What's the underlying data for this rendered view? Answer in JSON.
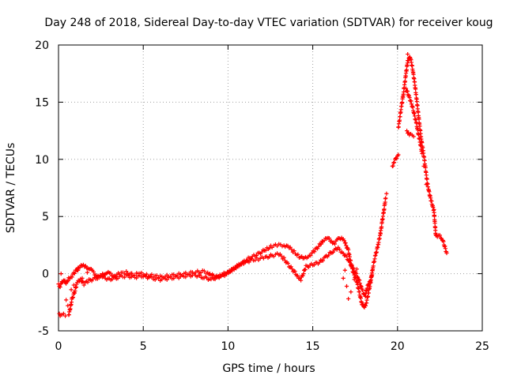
{
  "chart_data": {
    "type": "scatter",
    "title": "Day 248 of 2018, Sidereal Day-to-day VTEC variation (SDTVAR) for receiver koug",
    "xlabel": "GPS time / hours",
    "ylabel": "SDTVAR / TECUs",
    "xlim": [
      0,
      25
    ],
    "ylim": [
      -5,
      20
    ],
    "xticks": [
      "0",
      "5",
      "10",
      "15",
      "20",
      "25"
    ],
    "yticks": [
      "-5",
      "0",
      "5",
      "10",
      "15",
      "20"
    ],
    "grid": true,
    "marker": "plus",
    "marker_color": "#ff0000",
    "series": [
      {
        "name": "SDTVAR",
        "trace_main": [
          [
            0.0,
            -0.9
          ],
          [
            0.1,
            -1.1
          ],
          [
            0.2,
            -0.8
          ],
          [
            0.3,
            -0.5
          ],
          [
            0.45,
            -0.9
          ],
          [
            0.6,
            -0.4
          ],
          [
            0.8,
            -0.2
          ],
          [
            1.0,
            0.2
          ],
          [
            1.2,
            0.6
          ],
          [
            1.4,
            0.7
          ],
          [
            1.6,
            0.6
          ],
          [
            1.8,
            0.5
          ],
          [
            2.0,
            0.2
          ],
          [
            2.2,
            -0.1
          ],
          [
            2.4,
            -0.3
          ],
          [
            2.6,
            -0.1
          ],
          [
            2.8,
            0.1
          ],
          [
            3.0,
            0.0
          ],
          [
            3.3,
            -0.2
          ],
          [
            3.6,
            0.0
          ],
          [
            4.0,
            0.1
          ],
          [
            4.4,
            -0.1
          ],
          [
            4.8,
            0.0
          ],
          [
            5.2,
            -0.1
          ],
          [
            5.6,
            -0.2
          ],
          [
            6.0,
            -0.3
          ],
          [
            6.5,
            -0.2
          ],
          [
            7.0,
            -0.1
          ],
          [
            7.5,
            0.0
          ],
          [
            8.0,
            0.1
          ],
          [
            8.5,
            0.2
          ],
          [
            8.8,
            0.1
          ],
          [
            9.0,
            -0.1
          ],
          [
            9.3,
            -0.3
          ],
          [
            9.6,
            -0.1
          ],
          [
            10.0,
            0.1
          ],
          [
            10.4,
            0.5
          ],
          [
            10.8,
            0.9
          ],
          [
            11.2,
            1.3
          ],
          [
            11.6,
            1.6
          ],
          [
            12.0,
            1.9
          ],
          [
            12.3,
            2.2
          ],
          [
            12.6,
            2.4
          ],
          [
            13.0,
            2.5
          ],
          [
            13.3,
            2.5
          ],
          [
            13.6,
            2.3
          ],
          [
            13.9,
            1.9
          ],
          [
            14.2,
            1.5
          ],
          [
            14.5,
            1.3
          ],
          [
            14.8,
            1.6
          ],
          [
            15.1,
            2.0
          ],
          [
            15.4,
            2.5
          ],
          [
            15.6,
            2.9
          ],
          [
            15.9,
            3.1
          ],
          [
            16.1,
            2.8
          ],
          [
            16.3,
            2.7
          ],
          [
            16.5,
            3.0
          ],
          [
            16.7,
            3.2
          ],
          [
            16.9,
            2.7
          ],
          [
            17.1,
            2.0
          ],
          [
            17.2,
            1.3
          ],
          [
            17.3,
            0.5
          ],
          [
            17.45,
            -0.1
          ],
          [
            17.6,
            -0.7
          ],
          [
            17.75,
            -1.7
          ],
          [
            17.9,
            -2.6
          ],
          [
            18.05,
            -3.0
          ],
          [
            18.15,
            -2.6
          ],
          [
            18.3,
            -1.6
          ],
          [
            18.45,
            -0.4
          ],
          [
            18.55,
            0.6
          ],
          [
            18.7,
            1.6
          ],
          [
            18.85,
            2.5
          ],
          [
            19.0,
            3.6
          ],
          [
            19.1,
            4.6
          ],
          [
            19.2,
            5.6
          ],
          [
            19.3,
            6.6
          ]
        ],
        "trace_upper": [
          [
            19.7,
            9.4
          ],
          [
            19.8,
            9.8
          ],
          [
            20.0,
            10.3
          ],
          [
            20.05,
            12.8
          ],
          [
            20.15,
            13.8
          ],
          [
            20.25,
            14.8
          ],
          [
            20.35,
            15.8
          ],
          [
            20.5,
            17.5
          ],
          [
            20.6,
            18.6
          ],
          [
            20.7,
            19.0
          ],
          [
            20.8,
            18.6
          ],
          [
            20.9,
            17.8
          ],
          [
            21.0,
            16.8
          ],
          [
            21.1,
            15.6
          ],
          [
            21.2,
            14.3
          ],
          [
            21.3,
            13.0
          ],
          [
            21.4,
            11.8
          ],
          [
            21.5,
            10.8
          ],
          [
            21.6,
            9.8
          ],
          [
            21.75,
            8.0
          ],
          [
            21.85,
            7.2
          ],
          [
            21.95,
            6.6
          ],
          [
            22.05,
            6.0
          ],
          [
            22.15,
            5.5
          ],
          [
            22.25,
            3.5
          ],
          [
            22.35,
            3.2
          ],
          [
            22.5,
            3.3
          ],
          [
            22.65,
            3.0
          ],
          [
            22.8,
            2.3
          ],
          [
            22.9,
            1.8
          ]
        ],
        "trace_branch": [
          [
            20.5,
            16.2
          ],
          [
            20.65,
            15.6
          ],
          [
            20.8,
            15.0
          ],
          [
            20.95,
            14.2
          ],
          [
            21.1,
            13.2
          ],
          [
            21.25,
            12.1
          ],
          [
            21.45,
            10.5
          ],
          [
            20.55,
            12.5
          ],
          [
            20.7,
            12.2
          ],
          [
            20.95,
            12.0
          ]
        ],
        "trace_lower": [
          [
            0.6,
            -3.6
          ],
          [
            0.7,
            -3.0
          ],
          [
            0.8,
            -2.2
          ],
          [
            0.95,
            -1.6
          ],
          [
            1.1,
            -0.8
          ],
          [
            1.3,
            -0.5
          ],
          [
            1.5,
            -0.9
          ],
          [
            1.8,
            -0.6
          ],
          [
            2.2,
            -0.4
          ],
          [
            2.6,
            -0.3
          ],
          [
            3.0,
            -0.5
          ],
          [
            3.5,
            -0.3
          ],
          [
            4.0,
            -0.2
          ],
          [
            4.5,
            -0.3
          ],
          [
            5.0,
            -0.2
          ],
          [
            5.5,
            -0.4
          ],
          [
            6.0,
            -0.5
          ],
          [
            6.5,
            -0.4
          ],
          [
            7.0,
            -0.3
          ],
          [
            7.5,
            -0.2
          ],
          [
            8.0,
            -0.1
          ],
          [
            8.5,
            -0.3
          ],
          [
            9.0,
            -0.5
          ],
          [
            9.4,
            -0.3
          ],
          [
            9.8,
            -0.1
          ],
          [
            10.2,
            0.3
          ],
          [
            10.6,
            0.7
          ],
          [
            11.0,
            1.0
          ],
          [
            11.4,
            1.2
          ],
          [
            11.8,
            1.3
          ],
          [
            12.2,
            1.4
          ],
          [
            12.6,
            1.6
          ],
          [
            13.0,
            1.7
          ],
          [
            13.3,
            1.3
          ],
          [
            13.6,
            0.7
          ],
          [
            13.9,
            0.2
          ],
          [
            14.1,
            -0.2
          ],
          [
            14.3,
            -0.5
          ],
          [
            14.6,
            0.6
          ],
          [
            15.0,
            0.8
          ],
          [
            15.4,
            1.0
          ],
          [
            15.8,
            1.5
          ],
          [
            16.2,
            2.0
          ],
          [
            16.5,
            2.2
          ],
          [
            16.8,
            1.8
          ],
          [
            17.1,
            1.2
          ],
          [
            17.4,
            0.4
          ],
          [
            17.7,
            -0.4
          ],
          [
            17.9,
            -1.4
          ],
          [
            18.1,
            -2.0
          ],
          [
            18.2,
            -1.2
          ],
          [
            18.35,
            -0.8
          ],
          [
            18.5,
            -0.1
          ]
        ],
        "trace_scatter": [
          [
            0.05,
            -3.5
          ],
          [
            0.1,
            -3.7
          ],
          [
            0.2,
            -3.6
          ],
          [
            0.3,
            -3.5
          ],
          [
            0.4,
            -3.7
          ],
          [
            0.45,
            -2.3
          ],
          [
            0.55,
            -2.8
          ],
          [
            0.75,
            -1.4
          ],
          [
            0.9,
            -1.0
          ],
          [
            1.15,
            0.3
          ],
          [
            0.15,
            0.0
          ],
          [
            1.4,
            -0.4
          ],
          [
            1.7,
            0.1
          ],
          [
            16.8,
            -0.4
          ],
          [
            16.9,
            0.3
          ],
          [
            17.0,
            -1.1
          ],
          [
            17.1,
            -2.2
          ],
          [
            17.25,
            -1.6
          ],
          [
            17.45,
            -0.5
          ],
          [
            17.6,
            0.4
          ],
          [
            19.35,
            7.0
          ],
          [
            20.05,
            10.4
          ],
          [
            20.6,
            19.2
          ],
          [
            21.55,
            9.4
          ],
          [
            21.7,
            7.8
          ]
        ]
      }
    ]
  }
}
